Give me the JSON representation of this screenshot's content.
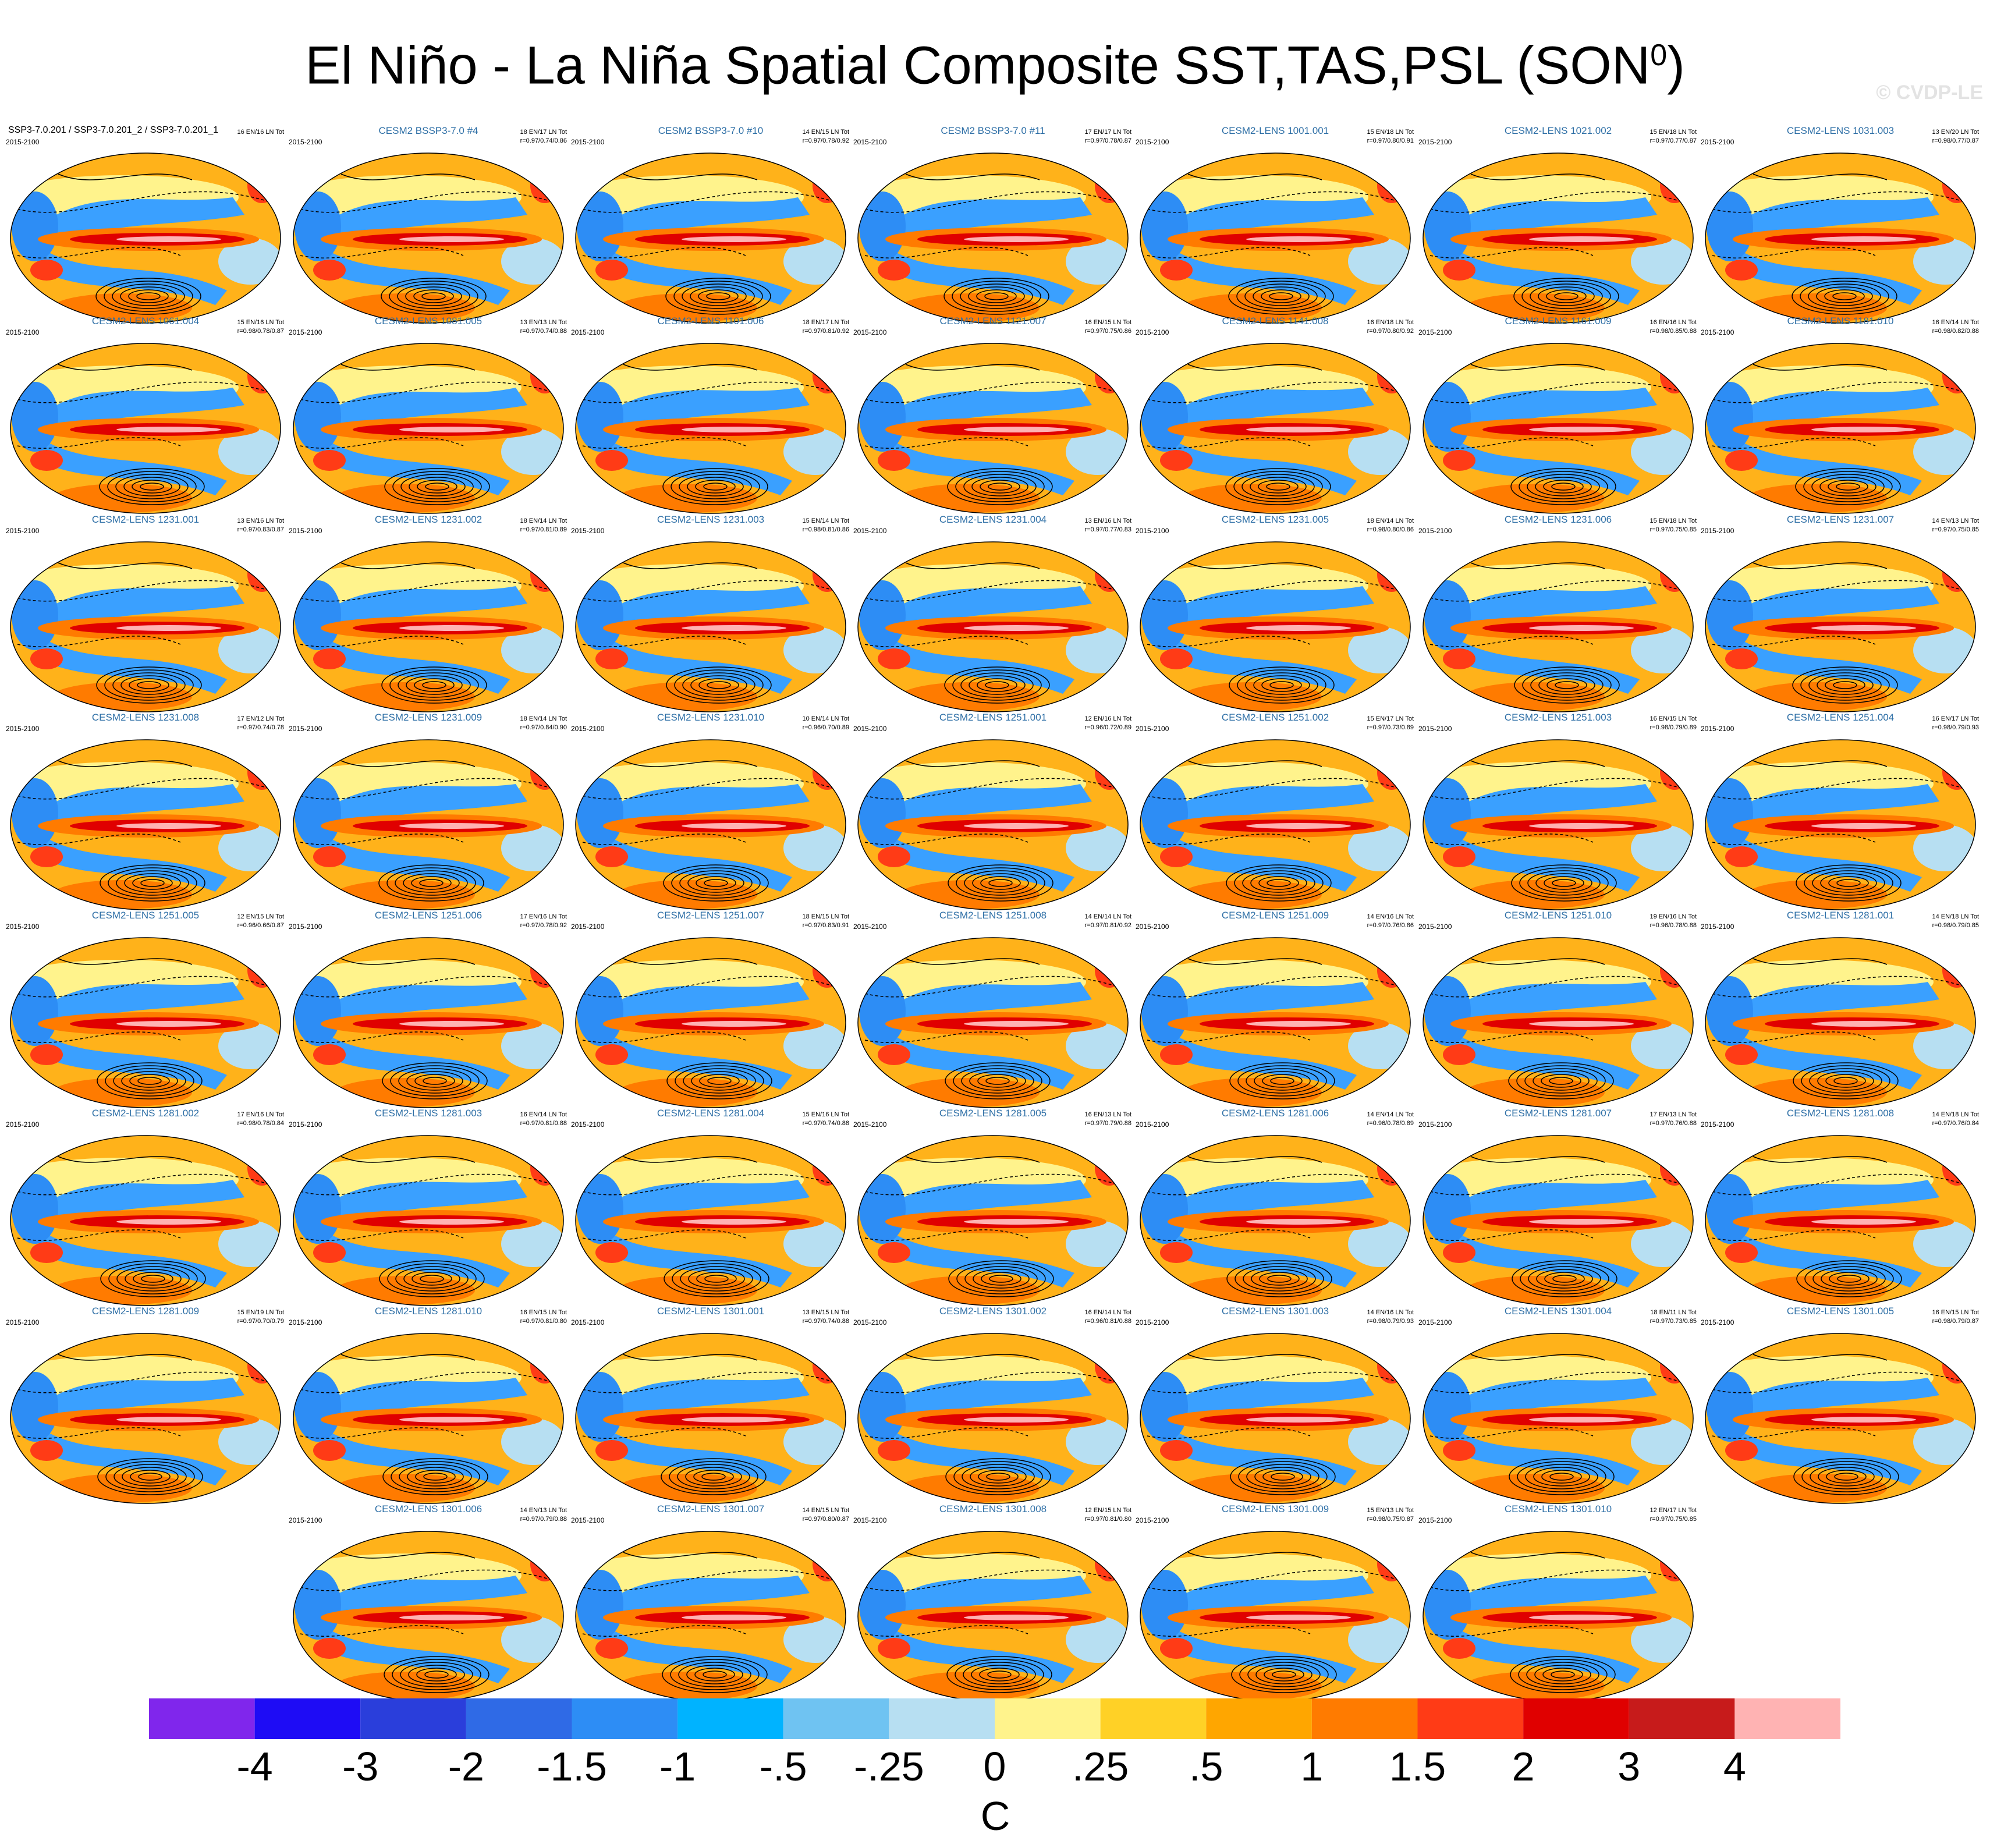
{
  "title_main": "El Niño - La Niña Spatial Composite SST,TAS,PSL (SON",
  "title_sup": "0",
  "title_end": ")",
  "watermark": "© CVDP-LE",
  "period": "2015-2100",
  "colors": {
    "land_ocean_hot": "#ff9f00",
    "cold": "#3aa0ff",
    "equatorial_max": "#cc1a1a"
  },
  "colorbar": {
    "units": "C",
    "colors": [
      "#8026ec",
      "#1e0cf5",
      "#2a3edb",
      "#2f6ae6",
      "#2d8df5",
      "#00b3ff",
      "#6fc3f2",
      "#b7dff2",
      "#fff38c",
      "#ffd126",
      "#ffa600",
      "#ff7b00",
      "#ff3b16",
      "#e00000",
      "#c71b1b",
      "#ffb3b3"
    ],
    "labels": [
      "-4",
      "-3",
      "-2",
      "-1.5",
      "-1",
      "-.5",
      "-.25",
      "0",
      ".25",
      ".5",
      "1",
      "1.5",
      "2",
      "3",
      "4"
    ]
  },
  "panels": [
    {
      "name": "SSP3-7.0.201 / SSP3-7.0.201_2 / SSP3-7.0.201_1",
      "counts": "16 EN/16 LN Tot",
      "corr": ""
    },
    {
      "name": "CESM2 BSSP3-7.0 #4",
      "counts": "18 EN/17 LN Tot",
      "corr": "r=0.97/0.74/0.86"
    },
    {
      "name": "CESM2 BSSP3-7.0 #10",
      "counts": "14 EN/15 LN Tot",
      "corr": "r=0.97/0.78/0.92"
    },
    {
      "name": "CESM2 BSSP3-7.0 #11",
      "counts": "17 EN/17 LN Tot",
      "corr": "r=0.97/0.78/0.87"
    },
    {
      "name": "CESM2-LENS 1001.001",
      "counts": "15 EN/18 LN Tot",
      "corr": "r=0.97/0.80/0.91"
    },
    {
      "name": "CESM2-LENS 1021.002",
      "counts": "15 EN/18 LN Tot",
      "corr": "r=0.97/0.77/0.87"
    },
    {
      "name": "CESM2-LENS 1031.003",
      "counts": "13 EN/20 LN Tot",
      "corr": "r=0.98/0.77/0.87"
    },
    {
      "name": "CESM2-LENS 1061.004",
      "counts": "15 EN/16 LN Tot",
      "corr": "r=0.98/0.78/0.87"
    },
    {
      "name": "CESM2-LENS 1081.005",
      "counts": "13 EN/13 LN Tot",
      "corr": "r=0.97/0.74/0.88"
    },
    {
      "name": "CESM2-LENS 1101.006",
      "counts": "18 EN/17 LN Tot",
      "corr": "r=0.97/0.81/0.92"
    },
    {
      "name": "CESM2-LENS 1121.007",
      "counts": "16 EN/15 LN Tot",
      "corr": "r=0.97/0.75/0.86"
    },
    {
      "name": "CESM2-LENS 1141.008",
      "counts": "16 EN/18 LN Tot",
      "corr": "r=0.97/0.80/0.92"
    },
    {
      "name": "CESM2-LENS 1161.009",
      "counts": "16 EN/16 LN Tot",
      "corr": "r=0.98/0.85/0.88"
    },
    {
      "name": "CESM2-LENS 1181.010",
      "counts": "16 EN/14 LN Tot",
      "corr": "r=0.98/0.82/0.88"
    },
    {
      "name": "CESM2-LENS 1231.001",
      "counts": "13 EN/16 LN Tot",
      "corr": "r=0.97/0.83/0.87"
    },
    {
      "name": "CESM2-LENS 1231.002",
      "counts": "18 EN/14 LN Tot",
      "corr": "r=0.97/0.81/0.89"
    },
    {
      "name": "CESM2-LENS 1231.003",
      "counts": "15 EN/14 LN Tot",
      "corr": "r=0.98/0.81/0.86"
    },
    {
      "name": "CESM2-LENS 1231.004",
      "counts": "13 EN/16 LN Tot",
      "corr": "r=0.97/0.77/0.83"
    },
    {
      "name": "CESM2-LENS 1231.005",
      "counts": "18 EN/14 LN Tot",
      "corr": "r=0.98/0.80/0.86"
    },
    {
      "name": "CESM2-LENS 1231.006",
      "counts": "15 EN/18 LN Tot",
      "corr": "r=0.97/0.75/0.85"
    },
    {
      "name": "CESM2-LENS 1231.007",
      "counts": "14 EN/13 LN Tot",
      "corr": "r=0.97/0.75/0.85"
    },
    {
      "name": "CESM2-LENS 1231.008",
      "counts": "17 EN/12 LN Tot",
      "corr": "r=0.97/0.74/0.78"
    },
    {
      "name": "CESM2-LENS 1231.009",
      "counts": "18 EN/14 LN Tot",
      "corr": "r=0.97/0.84/0.90"
    },
    {
      "name": "CESM2-LENS 1231.010",
      "counts": "10 EN/14 LN Tot",
      "corr": "r=0.96/0.70/0.89"
    },
    {
      "name": "CESM2-LENS 1251.001",
      "counts": "12 EN/16 LN Tot",
      "corr": "r=0.96/0.72/0.89"
    },
    {
      "name": "CESM2-LENS 1251.002",
      "counts": "15 EN/17 LN Tot",
      "corr": "r=0.97/0.73/0.89"
    },
    {
      "name": "CESM2-LENS 1251.003",
      "counts": "16 EN/15 LN Tot",
      "corr": "r=0.98/0.79/0.89"
    },
    {
      "name": "CESM2-LENS 1251.004",
      "counts": "16 EN/17 LN Tot",
      "corr": "r=0.98/0.79/0.93"
    },
    {
      "name": "CESM2-LENS 1251.005",
      "counts": "12 EN/15 LN Tot",
      "corr": "r=0.96/0.66/0.87"
    },
    {
      "name": "CESM2-LENS 1251.006",
      "counts": "17 EN/16 LN Tot",
      "corr": "r=0.97/0.78/0.92"
    },
    {
      "name": "CESM2-LENS 1251.007",
      "counts": "18 EN/15 LN Tot",
      "corr": "r=0.97/0.83/0.91"
    },
    {
      "name": "CESM2-LENS 1251.008",
      "counts": "14 EN/14 LN Tot",
      "corr": "r=0.97/0.81/0.92"
    },
    {
      "name": "CESM2-LENS 1251.009",
      "counts": "14 EN/16 LN Tot",
      "corr": "r=0.97/0.76/0.86"
    },
    {
      "name": "CESM2-LENS 1251.010",
      "counts": "19 EN/16 LN Tot",
      "corr": "r=0.96/0.78/0.88"
    },
    {
      "name": "CESM2-LENS 1281.001",
      "counts": "14 EN/18 LN Tot",
      "corr": "r=0.98/0.79/0.85"
    },
    {
      "name": "CESM2-LENS 1281.002",
      "counts": "17 EN/16 LN Tot",
      "corr": "r=0.98/0.78/0.84"
    },
    {
      "name": "CESM2-LENS 1281.003",
      "counts": "16 EN/14 LN Tot",
      "corr": "r=0.97/0.81/0.88"
    },
    {
      "name": "CESM2-LENS 1281.004",
      "counts": "15 EN/16 LN Tot",
      "corr": "r=0.97/0.74/0.88"
    },
    {
      "name": "CESM2-LENS 1281.005",
      "counts": "16 EN/13 LN Tot",
      "corr": "r=0.97/0.79/0.88"
    },
    {
      "name": "CESM2-LENS 1281.006",
      "counts": "14 EN/14 LN Tot",
      "corr": "r=0.96/0.78/0.89"
    },
    {
      "name": "CESM2-LENS 1281.007",
      "counts": "17 EN/13 LN Tot",
      "corr": "r=0.97/0.76/0.88"
    },
    {
      "name": "CESM2-LENS 1281.008",
      "counts": "14 EN/18 LN Tot",
      "corr": "r=0.97/0.76/0.84"
    },
    {
      "name": "CESM2-LENS 1281.009",
      "counts": "15 EN/19 LN Tot",
      "corr": "r=0.97/0.70/0.79"
    },
    {
      "name": "CESM2-LENS 1281.010",
      "counts": "16 EN/15 LN Tot",
      "corr": "r=0.97/0.81/0.80"
    },
    {
      "name": "CESM2-LENS 1301.001",
      "counts": "13 EN/15 LN Tot",
      "corr": "r=0.97/0.74/0.88"
    },
    {
      "name": "CESM2-LENS 1301.002",
      "counts": "16 EN/14 LN Tot",
      "corr": "r=0.96/0.81/0.88"
    },
    {
      "name": "CESM2-LENS 1301.003",
      "counts": "14 EN/16 LN Tot",
      "corr": "r=0.98/0.79/0.93"
    },
    {
      "name": "CESM2-LENS 1301.004",
      "counts": "18 EN/11 LN Tot",
      "corr": "r=0.97/0.73/0.85"
    },
    {
      "name": "CESM2-LENS 1301.005",
      "counts": "16 EN/15 LN Tot",
      "corr": "r=0.98/0.79/0.87"
    },
    {
      "name": "CESM2-LENS 1301.006",
      "counts": "14 EN/13 LN Tot",
      "corr": "r=0.97/0.79/0.88"
    },
    {
      "name": "CESM2-LENS 1301.007",
      "counts": "14 EN/15 LN Tot",
      "corr": "r=0.97/0.80/0.87"
    },
    {
      "name": "CESM2-LENS 1301.008",
      "counts": "12 EN/15 LN Tot",
      "corr": "r=0.97/0.81/0.80"
    },
    {
      "name": "CESM2-LENS 1301.009",
      "counts": "15 EN/13 LN Tot",
      "corr": "r=0.98/0.75/0.87"
    },
    {
      "name": "CESM2-LENS 1301.010",
      "counts": "12 EN/17 LN Tot",
      "corr": "r=0.97/0.75/0.85"
    }
  ]
}
